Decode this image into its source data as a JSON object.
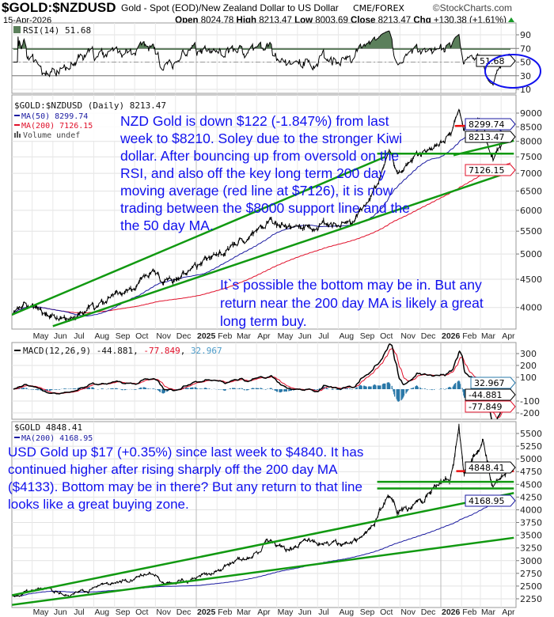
{
  "header": {
    "symbol": "$GOLD:$NZDUSD",
    "description": "Gold - Spot (EOD)/New Zealand Dollar to US Dollar",
    "exchange": "CME/FOREX",
    "copyright": "©StockCharts.com",
    "date": "15-Apr-2026",
    "open_label": "Open",
    "open": "8024.78",
    "high_label": "High",
    "high": "8213.47",
    "low_label": "Low",
    "low": "8003.69",
    "close_label": "Close",
    "close": "8213.47",
    "chg_label": "Chg",
    "chg": "+130.38 (+1.61%)",
    "chg_icon": "up-triangle-icon"
  },
  "colors": {
    "price": "#000000",
    "ma50": "#1a1aa0",
    "ma200": "#e0102a",
    "trend_green": "#119911",
    "level_red": "#ee1111",
    "rsi_fill": "#5b7f5b",
    "macd_hist": "#2a78a8",
    "annotation": "#1010ee"
  },
  "chart_data": [
    {
      "type": "line",
      "panel": "rsi",
      "legend": "RSI(14) 51.68",
      "value_tag": "51.68",
      "ylim": [
        0,
        100
      ],
      "yticks": [
        90,
        70,
        50,
        30,
        10
      ],
      "levels": [
        70,
        30
      ]
    },
    {
      "type": "line",
      "panel": "nzd-price",
      "scale": "log",
      "legend": {
        "title": "$GOLD:$NZDUSD (Daily) 8213.47",
        "ma50": "MA(50) 8299.74",
        "ma200": "MA(200) 7126.15",
        "volume": "Volume undef"
      },
      "ylim": [
        3700,
        9400
      ],
      "yticks": [
        9000,
        8500,
        8000,
        7500,
        7000,
        6500,
        6000,
        5500,
        5000,
        4500,
        4000
      ],
      "value_tags": {
        "close": "8213.47",
        "ma50": "8299.74",
        "ma200": "7126.15"
      },
      "series_anchors": [
        [
          "2024-04-03",
          3950
        ],
        [
          "2024-04-20",
          4020
        ],
        [
          "2024-05-20",
          3900
        ],
        [
          "2024-06-25",
          3760
        ],
        [
          "2024-07-20",
          3900
        ],
        [
          "2024-08-20",
          4080
        ],
        [
          "2024-09-25",
          4330
        ],
        [
          "2024-10-30",
          4700
        ],
        [
          "2024-11-15",
          4450
        ],
        [
          "2024-12-20",
          4600
        ],
        [
          "2025-01-20",
          4900
        ],
        [
          "2025-02-20",
          5150
        ],
        [
          "2025-03-20",
          5300
        ],
        [
          "2025-04-22",
          5800
        ],
        [
          "2025-05-15",
          5550
        ],
        [
          "2025-06-15",
          5600
        ],
        [
          "2025-07-15",
          5550
        ],
        [
          "2025-08-20",
          5700
        ],
        [
          "2025-09-20",
          6400
        ],
        [
          "2025-10-15",
          7600
        ],
        [
          "2025-10-28",
          7200
        ],
        [
          "2025-11-20",
          7400
        ],
        [
          "2025-12-20",
          7700
        ],
        [
          "2026-01-15",
          8200
        ],
        [
          "2026-01-28",
          9100
        ],
        [
          "2026-02-05",
          8500
        ],
        [
          "2026-02-25",
          8750
        ],
        [
          "2026-03-05",
          8700
        ],
        [
          "2026-03-20",
          7300
        ],
        [
          "2026-03-27",
          7800
        ],
        [
          "2026-04-08",
          8100
        ],
        [
          "2026-04-15",
          8213.47
        ]
      ],
      "trendlines": [
        {
          "color": "green",
          "points": [
            [
              "2024-03-25",
              3850
            ],
            [
              "2025-10-10",
              7500
            ]
          ]
        },
        {
          "color": "green",
          "points": [
            [
              "2024-06-01",
              3700
            ],
            [
              "2026-04-20",
              7080
            ]
          ]
        },
        {
          "color": "green",
          "points": [
            [
              "2025-09-28",
              7600
            ],
            [
              "2026-04-20",
              7600
            ]
          ]
        },
        {
          "color": "green",
          "points": [
            [
              "2026-01-20",
              7550
            ],
            [
              "2026-04-20",
              8020
            ]
          ]
        },
        {
          "color": "red",
          "points": [
            [
              "2026-01-22",
              8530
            ],
            [
              "2026-04-20",
              8560
            ]
          ]
        }
      ],
      "annotations": [
        [
          "NZD Gold is down $122 (-1.847%) from last",
          "week to $8210. Soley due to the stronger Kiwi",
          "dollar. After bouncing up from oversold on the",
          "RSI, and also off the key long term 200 day",
          "moving average (red line at $7126), it is now",
          "trading between the $8000 support line and the",
          "the 50 day MA."
        ],
        [
          "It`s possible the bottom may be in. But any",
          "return near the 200 day MA is likely a great",
          "long term buy."
        ]
      ]
    },
    {
      "type": "line",
      "panel": "macd",
      "legend": {
        "macd": "MACD(12,26,9) -44.881",
        "signal": "-77.849",
        "hist": "32.967"
      },
      "value_tags": {
        "hist": "32.967",
        "macd": "-44.881",
        "signal": "-77.849"
      },
      "ylim": [
        -230,
        360
      ],
      "yticks": [
        300,
        200,
        100,
        -100,
        -200
      ]
    },
    {
      "type": "line",
      "panel": "usd-gold",
      "scale": "linear",
      "legend": {
        "title": "$GOLD 4848.41",
        "ma200": "MA(200) 4168.95"
      },
      "ylim": [
        2150,
        5650
      ],
      "yticks": [
        5500,
        5250,
        5000,
        4750,
        4500,
        4250,
        4000,
        3750,
        3500,
        3250,
        3000,
        2750,
        2500,
        2250
      ],
      "value_tags": {
        "close": "4848.41",
        "ma200": "4168.95"
      },
      "series_anchors": [
        [
          "2024-04-03",
          2300
        ],
        [
          "2024-04-20",
          2390
        ],
        [
          "2024-05-20",
          2420
        ],
        [
          "2024-06-25",
          2320
        ],
        [
          "2024-07-20",
          2420
        ],
        [
          "2024-08-20",
          2500
        ],
        [
          "2024-09-25",
          2650
        ],
        [
          "2024-10-30",
          2780
        ],
        [
          "2024-11-15",
          2570
        ],
        [
          "2024-12-20",
          2620
        ],
        [
          "2025-01-25",
          2780
        ],
        [
          "2025-02-20",
          2940
        ],
        [
          "2025-03-25",
          3050
        ],
        [
          "2025-04-22",
          3400
        ],
        [
          "2025-05-15",
          3200
        ],
        [
          "2025-06-15",
          3380
        ],
        [
          "2025-07-15",
          3330
        ],
        [
          "2025-08-20",
          3350
        ],
        [
          "2025-09-20",
          3700
        ],
        [
          "2025-10-18",
          4350
        ],
        [
          "2025-10-28",
          3980
        ],
        [
          "2025-11-20",
          4080
        ],
        [
          "2025-12-26",
          4500
        ],
        [
          "2026-01-15",
          4600
        ],
        [
          "2026-01-28",
          5550
        ],
        [
          "2026-02-05",
          4700
        ],
        [
          "2026-02-25",
          5150
        ],
        [
          "2026-03-05",
          5350
        ],
        [
          "2026-03-20",
          4350
        ],
        [
          "2026-03-27",
          4500
        ],
        [
          "2026-04-08",
          4750
        ],
        [
          "2026-04-15",
          4848.41
        ]
      ],
      "trendlines": [
        {
          "color": "green",
          "points": [
            [
              "2024-04-01",
              2320
            ],
            [
              "2026-04-20",
              4330
            ]
          ]
        },
        {
          "color": "green",
          "points": [
            [
              "2024-04-01",
              2130
            ],
            [
              "2026-04-20",
              3450
            ]
          ]
        },
        {
          "color": "green",
          "points": [
            [
              "2025-09-28",
              4550
            ],
            [
              "2026-04-20",
              4550
            ]
          ]
        },
        {
          "color": "green",
          "points": [
            [
              "2025-09-28",
              4420
            ],
            [
              "2026-04-20",
              4420
            ]
          ]
        },
        {
          "color": "red",
          "points": [
            [
              "2026-01-24",
              4760
            ],
            [
              "2026-04-20",
              4760
            ]
          ]
        }
      ],
      "annotations": [
        [
          "USD Gold up $17 (+0.35%) since last week to $4840. It has",
          "continued higher after rising sharply off the 200 day MA",
          "($4133). Bottom may be in there? But any return to that line",
          "looks like a great buying zone."
        ]
      ]
    }
  ],
  "x_axis": {
    "months": [
      "May",
      "Jun",
      "Jul",
      "Aug",
      "Sep",
      "Oct",
      "Nov",
      "Dec",
      "2025",
      "Feb",
      "Mar",
      "Apr",
      "May",
      "Jun",
      "Jul",
      "Aug",
      "Sep",
      "Oct",
      "Nov",
      "Dec",
      "2026",
      "Feb",
      "Mar",
      "Apr"
    ],
    "first_month": "2024-05-01"
  }
}
